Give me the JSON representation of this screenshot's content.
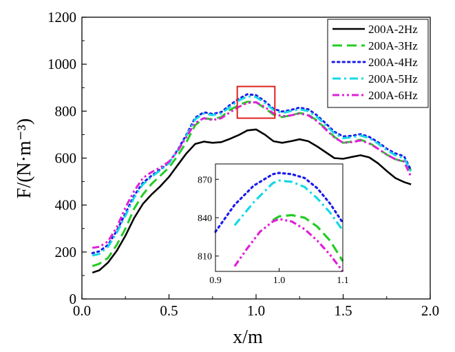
{
  "chart_data": {
    "type": "line",
    "title": "",
    "xlabel": "x/m",
    "ylabel": "F/(N·m⁻³)",
    "xlim": [
      0.0,
      2.0
    ],
    "ylim": [
      0,
      1200
    ],
    "xticks": [
      0.0,
      0.5,
      1.0,
      1.5,
      2.0
    ],
    "xtick_labels": [
      "0.0",
      "0.5",
      "1.0",
      "1.5",
      "2.0"
    ],
    "yticks": [
      0,
      200,
      400,
      600,
      800,
      1000,
      1200
    ],
    "ytick_labels": [
      "0",
      "200",
      "400",
      "600",
      "800",
      "1000",
      "1200"
    ],
    "legend_position": "top-right",
    "highlight_box": {
      "x_range": [
        0.9,
        1.1
      ],
      "y_range": [
        770,
        905
      ],
      "color": "#e02020"
    },
    "series": [
      {
        "name": "200A-2Hz",
        "color": "#000000",
        "dash": "solid",
        "x": [
          0.06,
          0.1,
          0.15,
          0.2,
          0.25,
          0.3,
          0.35,
          0.4,
          0.45,
          0.5,
          0.55,
          0.6,
          0.65,
          0.7,
          0.75,
          0.8,
          0.85,
          0.9,
          0.95,
          1.0,
          1.05,
          1.1,
          1.15,
          1.2,
          1.25,
          1.3,
          1.35,
          1.4,
          1.45,
          1.5,
          1.55,
          1.6,
          1.65,
          1.7,
          1.75,
          1.8,
          1.85,
          1.89
        ],
        "y": [
          112,
          122,
          155,
          205,
          270,
          345,
          405,
          445,
          480,
          520,
          570,
          620,
          660,
          670,
          665,
          668,
          682,
          698,
          718,
          722,
          700,
          672,
          665,
          672,
          680,
          672,
          650,
          625,
          600,
          597,
          605,
          612,
          603,
          578,
          545,
          515,
          498,
          488
        ]
      },
      {
        "name": "200A-3Hz",
        "color": "#22cc22",
        "dash": "long",
        "x": [
          0.06,
          0.1,
          0.15,
          0.2,
          0.25,
          0.3,
          0.35,
          0.4,
          0.45,
          0.5,
          0.55,
          0.6,
          0.65,
          0.7,
          0.75,
          0.8,
          0.85,
          0.9,
          0.95,
          1.0,
          1.05,
          1.1,
          1.15,
          1.2,
          1.25,
          1.3,
          1.35,
          1.4,
          1.45,
          1.5,
          1.55,
          1.6,
          1.65,
          1.7,
          1.75,
          1.8,
          1.85,
          1.89
        ],
        "y": [
          140,
          150,
          175,
          230,
          300,
          385,
          445,
          490,
          525,
          560,
          610,
          668,
          740,
          770,
          765,
          775,
          805,
          825,
          840,
          838,
          812,
          785,
          775,
          782,
          792,
          785,
          760,
          725,
          690,
          665,
          670,
          678,
          665,
          640,
          615,
          595,
          585,
          548
        ]
      },
      {
        "name": "200A-4Hz",
        "color": "#1a1aee",
        "dash": "dot",
        "x": [
          0.06,
          0.1,
          0.15,
          0.2,
          0.25,
          0.3,
          0.35,
          0.4,
          0.45,
          0.5,
          0.55,
          0.6,
          0.65,
          0.7,
          0.75,
          0.8,
          0.85,
          0.9,
          0.95,
          1.0,
          1.05,
          1.1,
          1.15,
          1.2,
          1.25,
          1.3,
          1.35,
          1.4,
          1.45,
          1.5,
          1.55,
          1.6,
          1.65,
          1.7,
          1.75,
          1.8,
          1.85,
          1.89
        ],
        "y": [
          195,
          203,
          230,
          290,
          365,
          440,
          495,
          525,
          552,
          580,
          635,
          700,
          772,
          795,
          788,
          796,
          826,
          852,
          872,
          868,
          842,
          810,
          798,
          805,
          815,
          808,
          782,
          748,
          712,
          692,
          695,
          702,
          690,
          668,
          640,
          620,
          608,
          548
        ]
      },
      {
        "name": "200A-5Hz",
        "color": "#14d8e6",
        "dash": "dashdot",
        "x": [
          0.06,
          0.1,
          0.15,
          0.2,
          0.25,
          0.3,
          0.35,
          0.4,
          0.45,
          0.5,
          0.55,
          0.6,
          0.65,
          0.7,
          0.75,
          0.8,
          0.85,
          0.9,
          0.95,
          1.0,
          1.05,
          1.1,
          1.15,
          1.2,
          1.25,
          1.3,
          1.35,
          1.4,
          1.45,
          1.5,
          1.55,
          1.6,
          1.65,
          1.7,
          1.75,
          1.8,
          1.85,
          1.89
        ],
        "y": [
          185,
          192,
          222,
          282,
          355,
          432,
          488,
          520,
          548,
          578,
          632,
          695,
          765,
          790,
          783,
          790,
          818,
          845,
          863,
          860,
          835,
          805,
          792,
          800,
          808,
          800,
          775,
          740,
          705,
          685,
          688,
          696,
          685,
          662,
          634,
          612,
          600,
          540
        ]
      },
      {
        "name": "200A-6Hz",
        "color": "#e020d8",
        "dash": "dashdotdot",
        "x": [
          0.06,
          0.1,
          0.15,
          0.2,
          0.25,
          0.3,
          0.35,
          0.4,
          0.45,
          0.5,
          0.55,
          0.6,
          0.65,
          0.7,
          0.75,
          0.8,
          0.85,
          0.9,
          0.95,
          1.0,
          1.05,
          1.1,
          1.15,
          1.2,
          1.25,
          1.3,
          1.35,
          1.4,
          1.45,
          1.5,
          1.55,
          1.6,
          1.65,
          1.7,
          1.75,
          1.8,
          1.85,
          1.89
        ],
        "y": [
          218,
          222,
          245,
          305,
          390,
          460,
          515,
          540,
          560,
          585,
          630,
          690,
          750,
          770,
          762,
          770,
          795,
          818,
          835,
          838,
          818,
          790,
          778,
          782,
          790,
          782,
          757,
          722,
          688,
          665,
          668,
          675,
          662,
          640,
          615,
          595,
          585,
          520
        ]
      }
    ],
    "inset": {
      "xlim": [
        0.9,
        1.1
      ],
      "ylim": [
        798,
        882
      ],
      "xticks": [
        0.9,
        1.0,
        1.1
      ],
      "xtick_labels": [
        "0.9",
        "1.0",
        "1.1"
      ],
      "yticks": [
        810,
        840,
        870
      ],
      "ytick_labels": [
        "810",
        "840",
        "870"
      ],
      "series": [
        {
          "name": "200A-3Hz",
          "x": [
            0.99,
            1.0,
            1.02,
            1.04,
            1.06,
            1.08,
            1.1
          ],
          "y": [
            838,
            841,
            842,
            840,
            833,
            822,
            806
          ]
        },
        {
          "name": "200A-4Hz",
          "x": [
            0.9,
            0.93,
            0.96,
            0.99,
            1.0,
            1.02,
            1.04,
            1.06,
            1.08,
            1.1
          ],
          "y": [
            829,
            850,
            865,
            874,
            875,
            874,
            871,
            863,
            851,
            836
          ]
        },
        {
          "name": "200A-5Hz",
          "x": [
            0.93,
            0.96,
            0.99,
            1.0,
            1.02,
            1.04,
            1.06,
            1.08,
            1.1
          ],
          "y": [
            834,
            852,
            867,
            869,
            868,
            864,
            855,
            844,
            830
          ]
        },
        {
          "name": "200A-6Hz",
          "x": [
            0.93,
            0.95,
            0.97,
            0.99,
            1.0,
            1.02,
            1.04,
            1.06,
            1.08,
            1.1
          ],
          "y": [
            802,
            816,
            829,
            837,
            839,
            837,
            831,
            822,
            811,
            798
          ]
        }
      ]
    }
  }
}
